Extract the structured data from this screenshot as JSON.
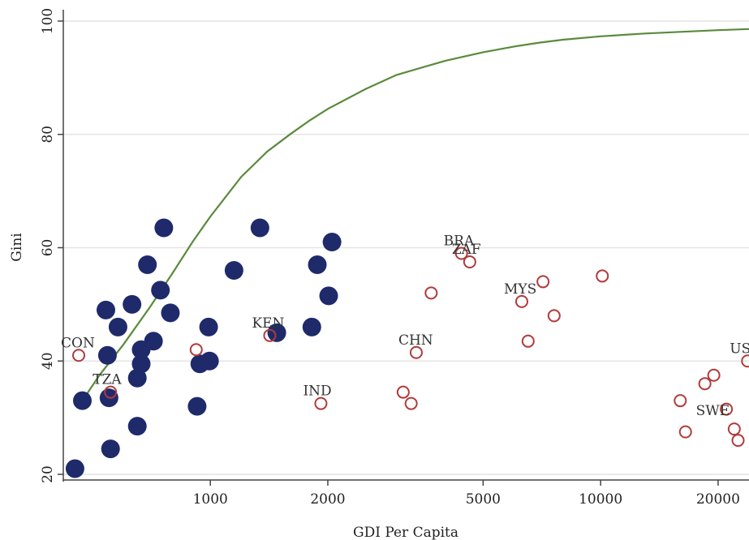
{
  "chart_data": {
    "type": "scatter",
    "xscale": "log",
    "xlabel": "GDI Per Capita",
    "ylabel": "Gini",
    "xlim": [
      420,
      24000
    ],
    "ylim": [
      19,
      102
    ],
    "xticks": [
      1000,
      2000,
      5000,
      10000,
      20000
    ],
    "xtick_labels": [
      "1000",
      "2000",
      "5000",
      "10000",
      "20000"
    ],
    "yticks": [
      20,
      40,
      60,
      80,
      100
    ],
    "ytick_labels": [
      "20",
      "40",
      "60",
      "80",
      "100"
    ],
    "grid": "horizontal",
    "colors": {
      "filled": "#1f2a6b",
      "hollow": "#b23a3a",
      "curve": "#5a8a3c",
      "grid": "#e4e4e4",
      "axis": "#444444"
    },
    "series": [
      {
        "marker": "filled",
        "points": [
          [
            450,
            21
          ],
          [
            470,
            33
          ],
          [
            540,
            49
          ],
          [
            545,
            41
          ],
          [
            550,
            33.5
          ],
          [
            555,
            24.5
          ],
          [
            580,
            46
          ],
          [
            630,
            50
          ],
          [
            650,
            28.5
          ],
          [
            650,
            37
          ],
          [
            665,
            42
          ],
          [
            665,
            39.5
          ],
          [
            690,
            57
          ],
          [
            715,
            43.5
          ],
          [
            745,
            52.5
          ],
          [
            760,
            63.5
          ],
          [
            790,
            48.5
          ],
          [
            925,
            32
          ],
          [
            940,
            39.5
          ],
          [
            990,
            46
          ],
          [
            995,
            40
          ],
          [
            1150,
            56
          ],
          [
            1340,
            63.5
          ],
          [
            1480,
            45
          ],
          [
            1820,
            46
          ],
          [
            1880,
            57
          ],
          [
            2010,
            51.5
          ],
          [
            2050,
            61
          ]
        ]
      },
      {
        "marker": "hollow",
        "points": [
          [
            460,
            41
          ],
          [
            555,
            34.5
          ],
          [
            920,
            42
          ],
          [
            1420,
            44.5
          ],
          [
            1920,
            32.5
          ],
          [
            3120,
            34.5
          ],
          [
            3270,
            32.5
          ],
          [
            3370,
            41.5
          ],
          [
            3680,
            52
          ],
          [
            4400,
            59
          ],
          [
            4620,
            57.5
          ],
          [
            6280,
            50.5
          ],
          [
            6520,
            43.5
          ],
          [
            7120,
            54
          ],
          [
            7600,
            48
          ],
          [
            10100,
            55
          ],
          [
            16000,
            33
          ],
          [
            16500,
            27.5
          ],
          [
            18500,
            36
          ],
          [
            19500,
            37.5
          ],
          [
            21000,
            31.5
          ],
          [
            22000,
            28
          ],
          [
            22500,
            26
          ],
          [
            23800,
            40
          ]
        ]
      },
      {
        "type": "line",
        "marker": "curve",
        "points": [
          [
            470,
            33
          ],
          [
            520,
            37.5
          ],
          [
            600,
            43
          ],
          [
            700,
            49.5
          ],
          [
            800,
            55.5
          ],
          [
            900,
            61
          ],
          [
            1000,
            65.5
          ],
          [
            1200,
            72.5
          ],
          [
            1400,
            77
          ],
          [
            1600,
            80
          ],
          [
            1800,
            82.5
          ],
          [
            2000,
            84.5
          ],
          [
            2500,
            88
          ],
          [
            3000,
            90.5
          ],
          [
            4000,
            93
          ],
          [
            5000,
            94.5
          ],
          [
            6000,
            95.5
          ],
          [
            7000,
            96.2
          ],
          [
            8000,
            96.7
          ],
          [
            10000,
            97.3
          ],
          [
            13000,
            97.8
          ],
          [
            16000,
            98.1
          ],
          [
            20000,
            98.4
          ],
          [
            24000,
            98.6
          ]
        ]
      }
    ],
    "labels": [
      {
        "text": "BRA",
        "x": 4400,
        "y": 59
      },
      {
        "text": "ZAF",
        "x": 4620,
        "y": 57.5
      },
      {
        "text": "MYS",
        "x": 6280,
        "y": 50.5
      },
      {
        "text": "KEN",
        "x": 1420,
        "y": 44.5
      },
      {
        "text": "CHN",
        "x": 3370,
        "y": 41.5
      },
      {
        "text": "IND",
        "x": 1920,
        "y": 32.5
      },
      {
        "text": "USA",
        "x": 23800,
        "y": 40
      },
      {
        "text": "SWE",
        "x": 19500,
        "y": 29
      },
      {
        "text": "CON",
        "x": 460,
        "y": 41
      },
      {
        "text": "TZA",
        "x": 555,
        "y": 34.5
      }
    ]
  }
}
